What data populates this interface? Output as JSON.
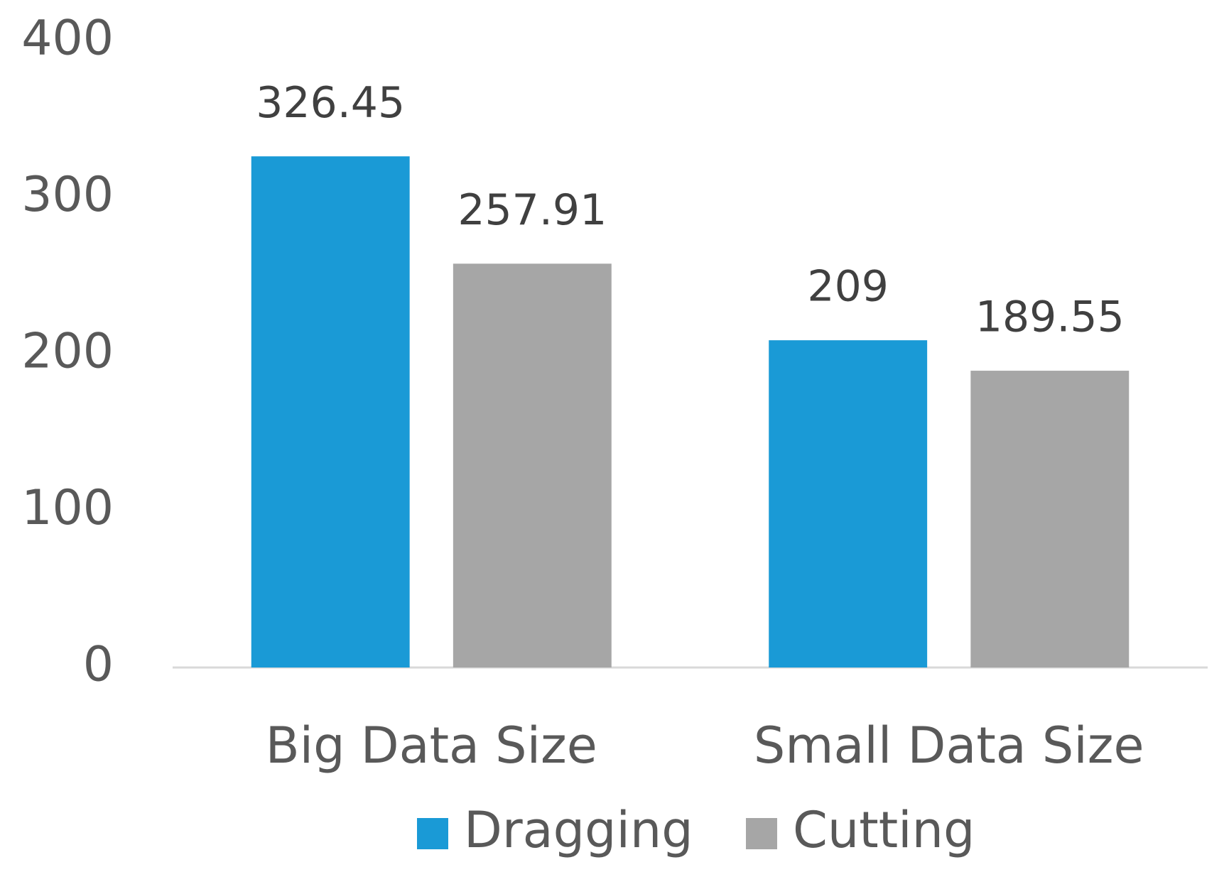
{
  "chart_data": {
    "type": "bar",
    "categories": [
      "Big Data Size",
      "Small Data Size"
    ],
    "series": [
      {
        "name": "Dragging",
        "color": "#1a9ad6",
        "values": [
          326.45,
          209
        ]
      },
      {
        "name": "Cutting",
        "color": "#a6a6a6",
        "values": [
          257.91,
          189.55
        ]
      }
    ],
    "ylim": [
      0,
      400
    ],
    "yticks": [
      0,
      100,
      200,
      300,
      400
    ],
    "grid": false,
    "legend": "bottom"
  }
}
